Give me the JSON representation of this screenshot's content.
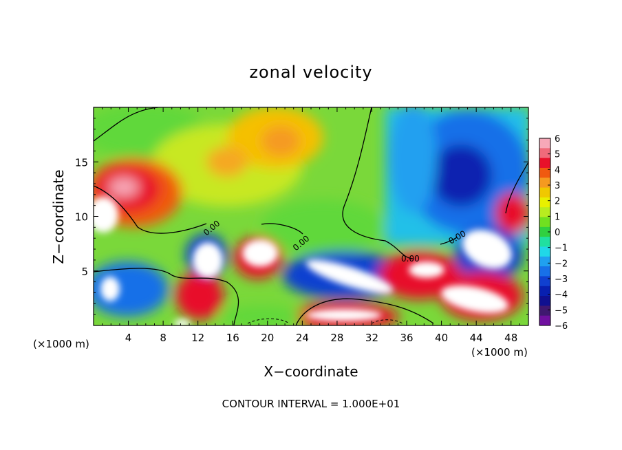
{
  "chart_data": {
    "type": "heatmap",
    "title": "zonal velocity",
    "xlabel": "X−coordinate",
    "ylabel": "Z−coordinate",
    "x_unit": "(×1000 m)",
    "x_unit_right": "(×1000 m)",
    "xlim": [
      0,
      50
    ],
    "ylim": [
      0,
      20
    ],
    "xticks": [
      4,
      8,
      12,
      16,
      20,
      24,
      28,
      32,
      36,
      40,
      44,
      48
    ],
    "yticks": [
      5,
      10,
      15
    ],
    "colorbar": {
      "min": -6,
      "max": 6,
      "ticks": [
        "6",
        "5",
        "4",
        "3",
        "2",
        "1",
        "0",
        "−1",
        "−2",
        "−3",
        "−4",
        "−5",
        "−6"
      ],
      "colors": [
        "#f7a8b8",
        "#f06a7a",
        "#e8102a",
        "#f05a10",
        "#f59a20",
        "#f0c800",
        "#e8f000",
        "#b8ec20",
        "#70e020",
        "#30d040",
        "#20e0a0",
        "#20d8e8",
        "#20a0f0",
        "#1870e8",
        "#1040d0",
        "#0820b0",
        "#101090",
        "#401870",
        "#7010a0"
      ],
      "over_color": "#ffffff"
    },
    "contour_labels": [
      "0.00",
      "0.00",
      "0.00",
      "0.00"
    ],
    "footer": "CONTOUR INTERVAL = 1.000E+01"
  }
}
